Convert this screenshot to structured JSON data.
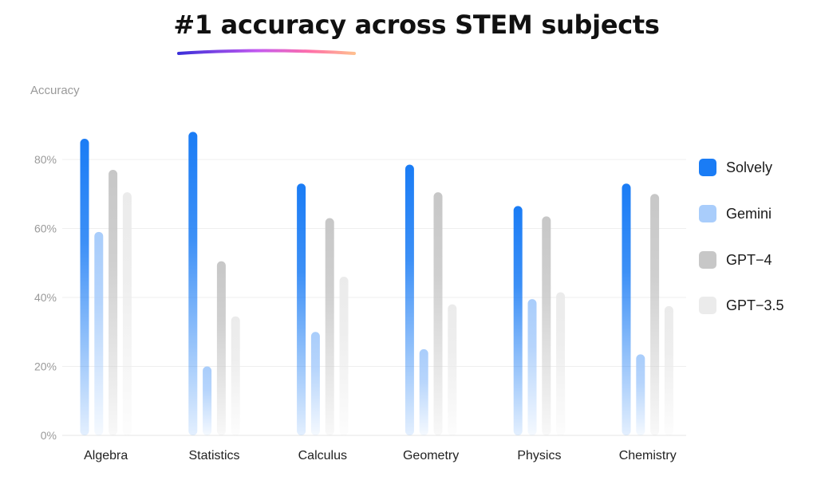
{
  "chart_data": {
    "type": "bar",
    "title": "#1 accuracy across STEM subjects",
    "ylabel": "Accuracy",
    "ylim": [
      0,
      100
    ],
    "yticks": [
      "0%",
      "20%",
      "40%",
      "60%",
      "80%"
    ],
    "ytick_values": [
      0,
      20,
      40,
      60,
      80
    ],
    "grid": true,
    "legend_position": "right",
    "categories": [
      "Algebra",
      "Statistics",
      "Calculus",
      "Geometry",
      "Physics",
      "Chemistry"
    ],
    "series": [
      {
        "name": "Solvely",
        "color": "#1a7cf5",
        "values": [
          86,
          88,
          73,
          78.5,
          66.5,
          73
        ]
      },
      {
        "name": "Gemini",
        "color": "#a9cdfb",
        "values": [
          59,
          20,
          30,
          25,
          39.5,
          23.5
        ]
      },
      {
        "name": "GPT−4",
        "color": "#c7c7c7",
        "values": [
          77,
          50.5,
          63,
          70.5,
          63.5,
          70
        ]
      },
      {
        "name": "GPT−3.5",
        "color": "#ebebeb",
        "values": [
          70.5,
          34.5,
          46,
          38,
          41.5,
          37.5
        ]
      }
    ]
  },
  "colors": {
    "grid": "#efefef",
    "tick_text": "#9a9a9a",
    "axis_label_text": "#9a9a9a",
    "category_text": "#222222",
    "underline_gradient": [
      "#3b2fd9",
      "#c45af0",
      "#ff6fa8",
      "#ffbf8f"
    ]
  }
}
